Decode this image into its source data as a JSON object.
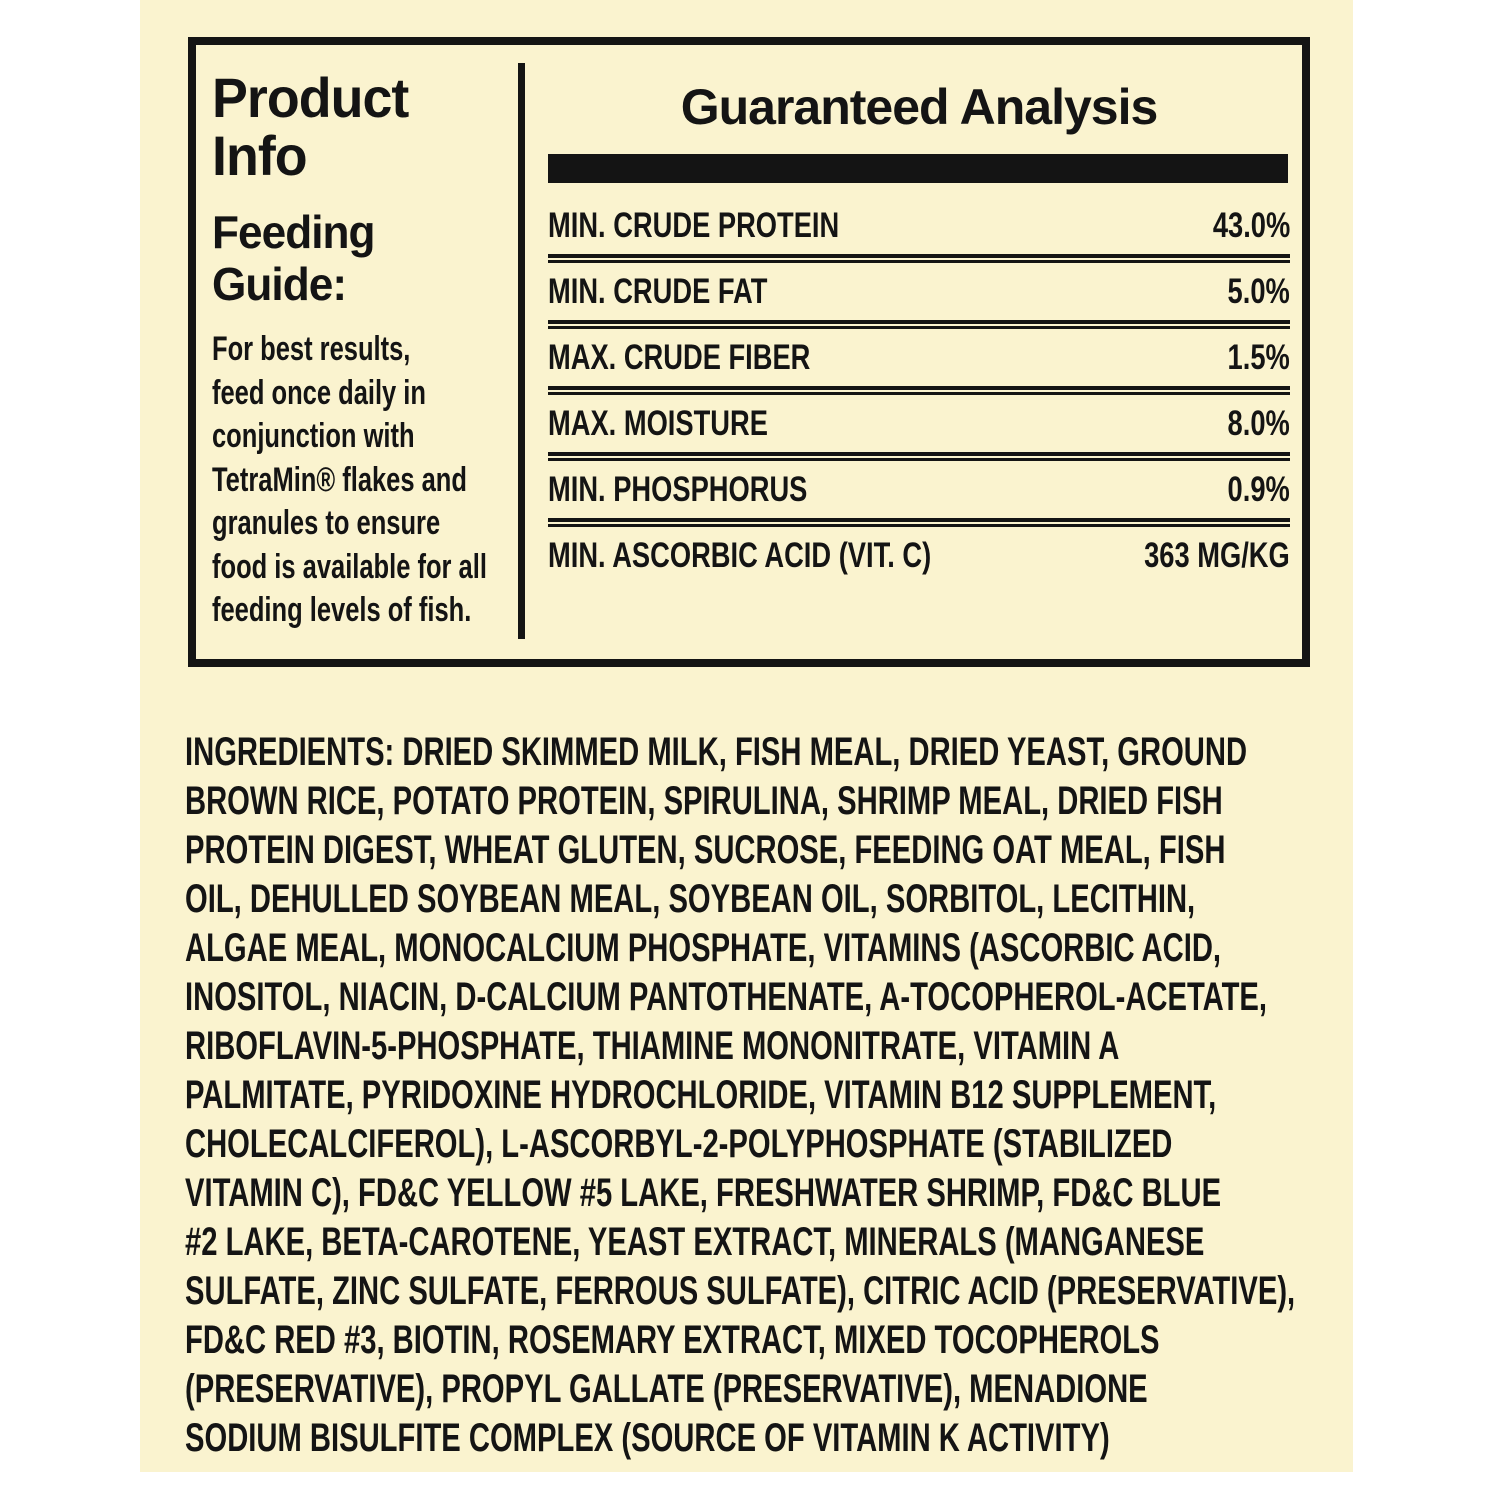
{
  "label": {
    "background_color": "#FAF3CF",
    "text_color": "#141414",
    "page_background": "#FFFFFF"
  },
  "product_info": {
    "title": "Product Info",
    "feeding_guide_title": "Feeding Guide:",
    "feeding_guide_lines": [
      "For best results,",
      "feed once daily in",
      "conjunction with",
      "TetraMin® flakes and",
      "granules to ensure",
      "food is available for all",
      "feeding levels of fish."
    ]
  },
  "guaranteed_analysis": {
    "title": "Guaranteed Analysis",
    "rows": [
      {
        "label": "MIN. CRUDE PROTEIN",
        "value": "43.0%"
      },
      {
        "label": "MIN. CRUDE FAT",
        "value": "5.0%"
      },
      {
        "label": "MAX. CRUDE FIBER",
        "value": "1.5%"
      },
      {
        "label": "MAX. MOISTURE",
        "value": "8.0%"
      },
      {
        "label": "MIN. PHOSPHORUS",
        "value": "0.9%"
      },
      {
        "label": "MIN. ASCORBIC ACID (VIT. C)",
        "value": "363 MG/KG"
      }
    ]
  },
  "ingredients": {
    "lines": [
      "INGREDIENTS: DRIED SKIMMED MILK, FISH MEAL, DRIED YEAST, GROUND",
      "BROWN RICE, POTATO PROTEIN, SPIRULINA, SHRIMP MEAL, DRIED FISH",
      "PROTEIN DIGEST, WHEAT GLUTEN, SUCROSE, FEEDING OAT MEAL, FISH",
      "OIL, DEHULLED SOYBEAN MEAL, SOYBEAN OIL, SORBITOL, LECITHIN,",
      "ALGAE MEAL, MONOCALCIUM PHOSPHATE, VITAMINS (ASCORBIC ACID,",
      "INOSITOL, NIACIN, D-CALCIUM PANTOTHENATE, A-TOCOPHEROL-ACETATE,",
      "RIBOFLAVIN-5-PHOSPHATE, THIAMINE MONONITRATE, VITAMIN A",
      "PALMITATE, PYRIDOXINE HYDROCHLORIDE, VITAMIN B12 SUPPLEMENT,",
      "CHOLECALCIFEROL), L-ASCORBYL-2-POLYPHOSPHATE (STABILIZED",
      "VITAMIN C), FD&C YELLOW #5 LAKE, FRESHWATER SHRIMP, FD&C BLUE",
      "#2 LAKE, BETA-CAROTENE, YEAST EXTRACT, MINERALS (MANGANESE",
      "SULFATE, ZINC SULFATE, FERROUS SULFATE), CITRIC ACID (PRESERVATIVE),",
      "FD&C RED #3, BIOTIN, ROSEMARY EXTRACT, MIXED TOCOPHEROLS",
      "(PRESERVATIVE), PROPYL GALLATE (PRESERVATIVE), MENADIONE",
      "SODIUM BISULFITE COMPLEX (SOURCE OF VITAMIN K ACTIVITY)"
    ]
  }
}
